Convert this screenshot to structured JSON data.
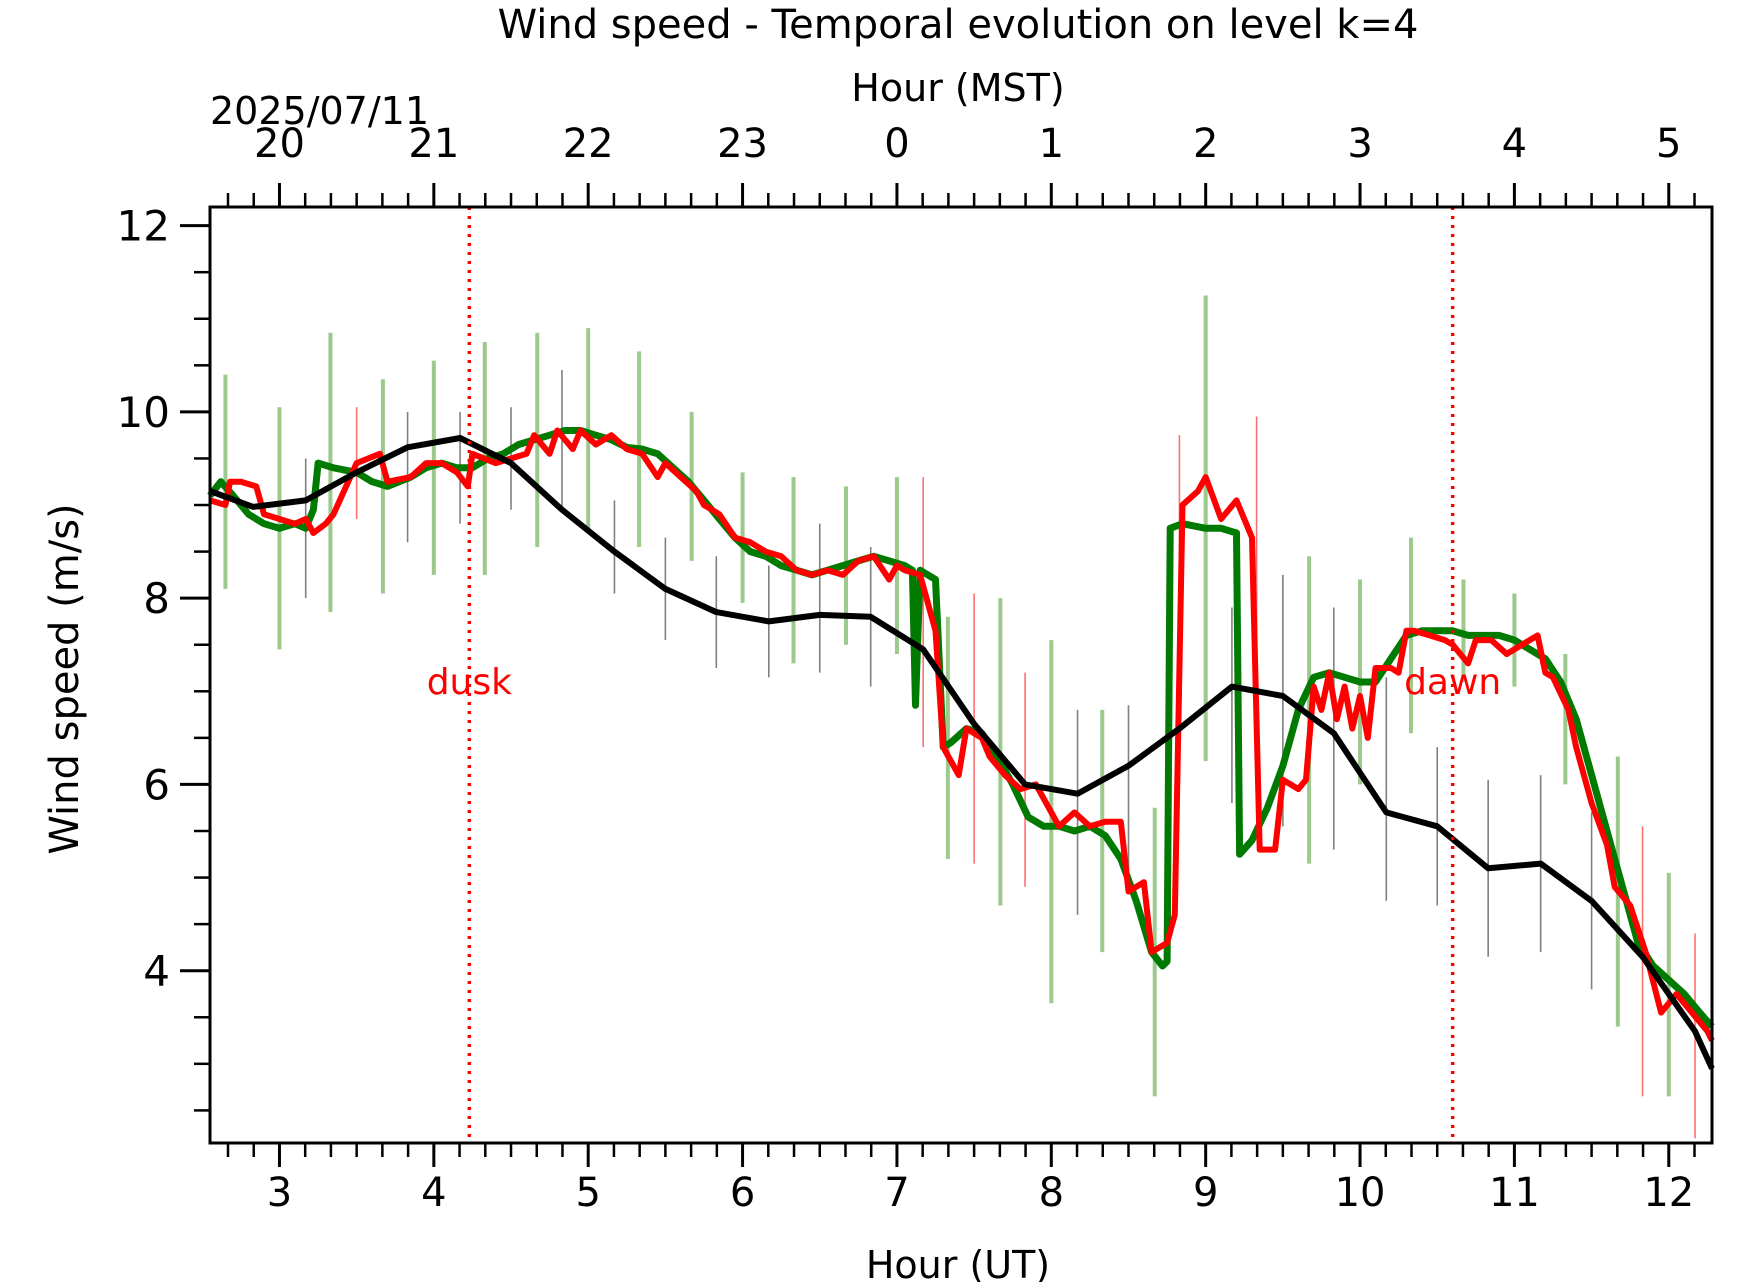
{
  "chart_data": {
    "type": "line",
    "title": "Wind speed - Temporal evolution on level k=4",
    "xlabel": "Hour (UT)",
    "ylabel": "Wind speed (m/s)",
    "top_xlabel": "Hour (MST)",
    "date_label": "2025/07/11",
    "xlim": [
      2.55,
      12.28
    ],
    "ylim": [
      2.15,
      12.2
    ],
    "x_ticks": [
      3,
      4,
      5,
      6,
      7,
      8,
      9,
      10,
      11,
      12
    ],
    "x_tick_labels": [
      "3",
      "4",
      "5",
      "6",
      "7",
      "8",
      "9",
      "10",
      "11",
      "12"
    ],
    "y_ticks": [
      4,
      6,
      8,
      10,
      12
    ],
    "y_tick_labels": [
      "4",
      "6",
      "8",
      "10",
      "12"
    ],
    "top_ticks_ut": [
      3,
      4,
      5,
      6,
      7,
      8,
      9,
      10,
      11,
      12
    ],
    "top_tick_labels": [
      "20",
      "21",
      "22",
      "23",
      "0",
      "1",
      "2",
      "3",
      "4",
      "5"
    ],
    "grid": false,
    "legend": "none",
    "annotations": [
      {
        "text": "dusk",
        "x": 4.23,
        "color": "#ff0000",
        "y_text": 7.1
      },
      {
        "text": "dawn",
        "x": 10.6,
        "color": "#ff0000",
        "y_text": 7.1
      }
    ],
    "colors": {
      "green": "#007a00",
      "green_error": "#9cc98c",
      "red": "#ff0000",
      "black": "#000000",
      "black_error": "#808080",
      "red_error": "#ff7070"
    },
    "series": [
      {
        "color": "#007a00",
        "x": [
          2.55,
          2.62,
          2.7,
          2.8,
          2.9,
          3.0,
          3.1,
          3.17,
          3.22,
          3.25,
          3.35,
          3.5,
          3.6,
          3.7,
          3.85,
          3.95,
          4.05,
          4.15,
          4.25,
          4.35,
          4.45,
          4.55,
          4.65,
          4.75,
          4.85,
          4.95,
          5.05,
          5.15,
          5.25,
          5.35,
          5.45,
          5.55,
          5.65,
          5.75,
          5.85,
          5.95,
          6.05,
          6.15,
          6.25,
          6.35,
          6.45,
          6.55,
          6.65,
          6.75,
          6.85,
          6.95,
          7.05,
          7.1,
          7.12,
          7.15,
          7.2,
          7.25,
          7.3,
          7.35,
          7.45,
          7.55,
          7.65,
          7.75,
          7.85,
          7.95,
          8.05,
          8.15,
          8.25,
          8.35,
          8.45,
          8.55,
          8.65,
          8.72,
          8.75,
          8.77,
          8.85,
          9.0,
          9.1,
          9.2,
          9.22,
          9.3,
          9.4,
          9.5,
          9.6,
          9.7,
          9.8,
          9.9,
          10.0,
          10.1,
          10.2,
          10.3,
          10.4,
          10.5,
          10.6,
          10.7,
          10.8,
          10.9,
          11.0,
          11.1,
          11.2,
          11.3,
          11.4,
          11.5,
          11.6,
          11.7,
          11.8,
          11.9,
          12.0,
          12.1,
          12.2,
          12.28
        ],
        "y": [
          9.1,
          9.25,
          9.1,
          8.9,
          8.8,
          8.75,
          8.8,
          8.75,
          8.95,
          9.45,
          9.4,
          9.35,
          9.25,
          9.2,
          9.3,
          9.4,
          9.45,
          9.4,
          9.4,
          9.5,
          9.55,
          9.65,
          9.7,
          9.75,
          9.8,
          9.8,
          9.75,
          9.7,
          9.62,
          9.6,
          9.55,
          9.4,
          9.25,
          9.05,
          8.85,
          8.65,
          8.5,
          8.45,
          8.35,
          8.3,
          8.25,
          8.3,
          8.35,
          8.4,
          8.45,
          8.4,
          8.35,
          8.3,
          6.85,
          8.3,
          8.25,
          8.2,
          6.4,
          6.45,
          6.6,
          6.55,
          6.3,
          6.0,
          5.65,
          5.55,
          5.55,
          5.5,
          5.55,
          5.45,
          5.2,
          4.75,
          4.2,
          4.05,
          4.1,
          8.75,
          8.8,
          8.75,
          8.75,
          8.7,
          5.25,
          5.4,
          5.75,
          6.2,
          6.8,
          7.15,
          7.2,
          7.15,
          7.1,
          7.1,
          7.35,
          7.6,
          7.65,
          7.65,
          7.65,
          7.6,
          7.6,
          7.6,
          7.55,
          7.45,
          7.35,
          7.1,
          6.7,
          6.1,
          5.5,
          4.9,
          4.3,
          4.05,
          3.9,
          3.75,
          3.55,
          3.4
        ]
      },
      {
        "color": "#ff0000",
        "x": [
          2.55,
          2.65,
          2.68,
          2.75,
          2.85,
          2.9,
          3.0,
          3.1,
          3.17,
          3.22,
          3.3,
          3.35,
          3.5,
          3.65,
          3.7,
          3.85,
          3.95,
          4.05,
          4.15,
          4.22,
          4.25,
          4.4,
          4.6,
          4.65,
          4.75,
          4.8,
          4.9,
          4.95,
          5.05,
          5.15,
          5.25,
          5.35,
          5.45,
          5.5,
          5.6,
          5.7,
          5.75,
          5.85,
          5.95,
          6.05,
          6.15,
          6.25,
          6.35,
          6.45,
          6.55,
          6.65,
          6.75,
          6.85,
          6.95,
          7.0,
          7.05,
          7.15,
          7.25,
          7.3,
          7.4,
          7.45,
          7.55,
          7.6,
          7.7,
          7.8,
          7.9,
          8.05,
          8.15,
          8.25,
          8.35,
          8.45,
          8.5,
          8.6,
          8.65,
          8.75,
          8.8,
          8.85,
          8.95,
          9.0,
          9.1,
          9.2,
          9.3,
          9.35,
          9.45,
          9.5,
          9.6,
          9.65,
          9.7,
          9.75,
          9.8,
          9.85,
          9.9,
          9.95,
          10.0,
          10.05,
          10.1,
          10.2,
          10.25,
          10.3,
          10.35,
          10.45,
          10.55,
          10.6,
          10.7,
          10.75,
          10.85,
          10.95,
          11.05,
          11.15,
          11.2,
          11.25,
          11.35,
          11.4,
          11.5,
          11.6,
          11.65,
          11.75,
          11.85,
          11.95,
          12.05,
          12.15,
          12.25,
          12.28
        ],
        "y": [
          9.05,
          9.0,
          9.25,
          9.25,
          9.2,
          8.9,
          8.85,
          8.8,
          8.85,
          8.7,
          8.8,
          8.9,
          9.45,
          9.55,
          9.25,
          9.3,
          9.45,
          9.45,
          9.35,
          9.2,
          9.55,
          9.45,
          9.55,
          9.75,
          9.55,
          9.8,
          9.6,
          9.8,
          9.65,
          9.75,
          9.6,
          9.55,
          9.3,
          9.45,
          9.3,
          9.15,
          9.0,
          8.9,
          8.65,
          8.6,
          8.5,
          8.45,
          8.3,
          8.25,
          8.3,
          8.25,
          8.4,
          8.45,
          8.2,
          8.35,
          8.3,
          8.25,
          7.65,
          6.4,
          6.1,
          6.6,
          6.5,
          6.3,
          6.1,
          5.95,
          6.0,
          5.55,
          5.7,
          5.55,
          5.6,
          5.6,
          4.85,
          4.95,
          4.2,
          4.3,
          4.6,
          9.0,
          9.15,
          9.3,
          8.85,
          9.05,
          8.65,
          5.3,
          5.3,
          6.05,
          5.95,
          6.05,
          7.05,
          6.8,
          7.2,
          6.7,
          7.05,
          6.6,
          6.95,
          6.5,
          7.25,
          7.25,
          7.2,
          7.65,
          7.65,
          7.6,
          7.55,
          7.5,
          7.3,
          7.55,
          7.55,
          7.4,
          7.5,
          7.6,
          7.2,
          7.15,
          6.8,
          6.4,
          5.8,
          5.35,
          4.9,
          4.7,
          4.2,
          3.55,
          3.75,
          3.55,
          3.35,
          3.25
        ]
      },
      {
        "color": "#000000",
        "x": [
          2.55,
          2.83,
          3.17,
          3.5,
          3.83,
          4.17,
          4.5,
          4.83,
          5.17,
          5.5,
          5.83,
          6.17,
          6.5,
          6.83,
          7.17,
          7.5,
          7.83,
          8.17,
          8.5,
          8.83,
          9.17,
          9.5,
          9.83,
          10.17,
          10.5,
          10.83,
          11.17,
          11.5,
          11.83,
          12.17,
          12.28
        ],
        "y": [
          9.15,
          8.98,
          9.05,
          9.35,
          9.62,
          9.72,
          9.45,
          8.95,
          8.5,
          8.1,
          7.85,
          7.75,
          7.82,
          7.8,
          7.45,
          6.65,
          6.0,
          5.9,
          6.2,
          6.6,
          7.05,
          6.95,
          6.55,
          5.7,
          5.55,
          5.1,
          5.15,
          4.75,
          4.15,
          3.35,
          2.95
        ]
      }
    ],
    "error_bars": [
      {
        "x": 2.65,
        "y": 9.25,
        "err": 1.15,
        "color": "#9cc98c"
      },
      {
        "x": 3.0,
        "y": 8.75,
        "err": 1.3,
        "color": "#9cc98c"
      },
      {
        "x": 3.17,
        "y": 8.75,
        "err": 0.75,
        "color": "#808080"
      },
      {
        "x": 3.33,
        "y": 9.35,
        "err": 1.5,
        "color": "#9cc98c"
      },
      {
        "x": 3.5,
        "y": 9.45,
        "err": 0.6,
        "color": "#ff7070"
      },
      {
        "x": 3.67,
        "y": 9.2,
        "err": 1.15,
        "color": "#9cc98c"
      },
      {
        "x": 3.83,
        "y": 9.3,
        "err": 0.7,
        "color": "#808080"
      },
      {
        "x": 4.0,
        "y": 9.4,
        "err": 1.15,
        "color": "#9cc98c"
      },
      {
        "x": 4.17,
        "y": 9.4,
        "err": 0.6,
        "color": "#808080"
      },
      {
        "x": 4.33,
        "y": 9.5,
        "err": 1.25,
        "color": "#9cc98c"
      },
      {
        "x": 4.5,
        "y": 9.5,
        "err": 0.55,
        "color": "#808080"
      },
      {
        "x": 4.67,
        "y": 9.7,
        "err": 1.15,
        "color": "#9cc98c"
      },
      {
        "x": 4.83,
        "y": 9.7,
        "err": 0.75,
        "color": "#808080"
      },
      {
        "x": 5.0,
        "y": 9.8,
        "err": 1.1,
        "color": "#9cc98c"
      },
      {
        "x": 5.17,
        "y": 8.55,
        "err": 0.5,
        "color": "#808080"
      },
      {
        "x": 5.33,
        "y": 9.6,
        "err": 1.05,
        "color": "#9cc98c"
      },
      {
        "x": 5.5,
        "y": 8.1,
        "err": 0.55,
        "color": "#808080"
      },
      {
        "x": 5.67,
        "y": 9.2,
        "err": 0.8,
        "color": "#9cc98c"
      },
      {
        "x": 5.83,
        "y": 7.85,
        "err": 0.6,
        "color": "#808080"
      },
      {
        "x": 6.0,
        "y": 8.65,
        "err": 0.7,
        "color": "#9cc98c"
      },
      {
        "x": 6.17,
        "y": 7.75,
        "err": 0.6,
        "color": "#808080"
      },
      {
        "x": 6.33,
        "y": 8.3,
        "err": 1.0,
        "color": "#9cc98c"
      },
      {
        "x": 6.5,
        "y": 8.0,
        "err": 0.8,
        "color": "#808080"
      },
      {
        "x": 6.67,
        "y": 8.35,
        "err": 0.85,
        "color": "#9cc98c"
      },
      {
        "x": 6.83,
        "y": 7.8,
        "err": 0.75,
        "color": "#808080"
      },
      {
        "x": 7.0,
        "y": 8.35,
        "err": 0.95,
        "color": "#9cc98c"
      },
      {
        "x": 7.17,
        "y": 7.85,
        "err": 1.45,
        "color": "#ff7070"
      },
      {
        "x": 7.33,
        "y": 6.5,
        "err": 1.3,
        "color": "#9cc98c"
      },
      {
        "x": 7.5,
        "y": 6.6,
        "err": 1.45,
        "color": "#ff7070"
      },
      {
        "x": 7.67,
        "y": 6.35,
        "err": 1.65,
        "color": "#9cc98c"
      },
      {
        "x": 7.83,
        "y": 6.05,
        "err": 1.15,
        "color": "#ff7070"
      },
      {
        "x": 8.0,
        "y": 5.6,
        "err": 1.95,
        "color": "#9cc98c"
      },
      {
        "x": 8.17,
        "y": 5.7,
        "err": 1.1,
        "color": "#808080"
      },
      {
        "x": 8.33,
        "y": 5.5,
        "err": 1.3,
        "color": "#9cc98c"
      },
      {
        "x": 8.5,
        "y": 5.9,
        "err": 0.95,
        "color": "#808080"
      },
      {
        "x": 8.67,
        "y": 4.2,
        "err": 1.55,
        "color": "#9cc98c"
      },
      {
        "x": 8.83,
        "y": 8.55,
        "err": 1.2,
        "color": "#ff7070"
      },
      {
        "x": 9.0,
        "y": 8.75,
        "err": 2.5,
        "color": "#9cc98c"
      },
      {
        "x": 9.17,
        "y": 6.85,
        "err": 1.05,
        "color": "#808080"
      },
      {
        "x": 9.33,
        "y": 8.65,
        "err": 1.3,
        "color": "#ff7070"
      },
      {
        "x": 9.5,
        "y": 6.9,
        "err": 1.35,
        "color": "#808080"
      },
      {
        "x": 9.67,
        "y": 6.8,
        "err": 1.65,
        "color": "#9cc98c"
      },
      {
        "x": 9.83,
        "y": 6.6,
        "err": 1.3,
        "color": "#808080"
      },
      {
        "x": 10.0,
        "y": 7.1,
        "err": 1.1,
        "color": "#9cc98c"
      },
      {
        "x": 10.17,
        "y": 5.95,
        "err": 1.2,
        "color": "#808080"
      },
      {
        "x": 10.33,
        "y": 7.6,
        "err": 1.05,
        "color": "#9cc98c"
      },
      {
        "x": 10.5,
        "y": 5.55,
        "err": 0.85,
        "color": "#808080"
      },
      {
        "x": 10.67,
        "y": 7.65,
        "err": 0.55,
        "color": "#9cc98c"
      },
      {
        "x": 10.83,
        "y": 5.1,
        "err": 0.95,
        "color": "#808080"
      },
      {
        "x": 11.0,
        "y": 7.55,
        "err": 0.5,
        "color": "#9cc98c"
      },
      {
        "x": 11.17,
        "y": 5.15,
        "err": 0.95,
        "color": "#808080"
      },
      {
        "x": 11.33,
        "y": 6.7,
        "err": 0.7,
        "color": "#9cc98c"
      },
      {
        "x": 11.5,
        "y": 4.75,
        "err": 0.95,
        "color": "#808080"
      },
      {
        "x": 11.67,
        "y": 4.85,
        "err": 1.45,
        "color": "#9cc98c"
      },
      {
        "x": 11.83,
        "y": 4.1,
        "err": 1.45,
        "color": "#ff7070"
      },
      {
        "x": 12.0,
        "y": 3.85,
        "err": 1.2,
        "color": "#9cc98c"
      },
      {
        "x": 12.17,
        "y": 3.3,
        "err": 1.1,
        "color": "#ff7070"
      }
    ]
  }
}
